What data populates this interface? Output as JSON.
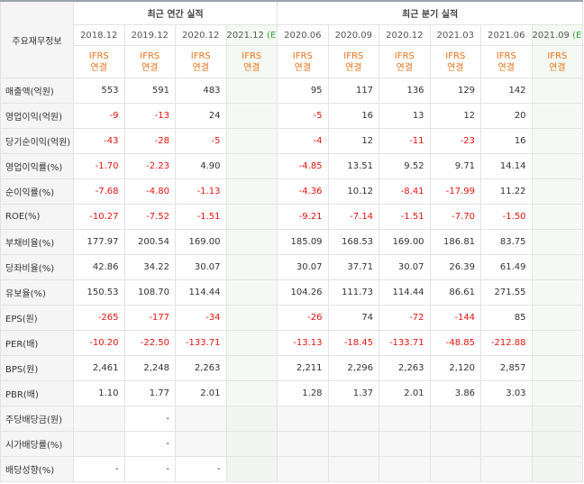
{
  "header": {
    "label": "주요재무정보",
    "annual_title": "최근 연간 실적",
    "quarterly_title": "최근 분기 실적",
    "annual_periods": [
      "2018.12",
      "2019.12",
      "2020.12",
      "2021.12"
    ],
    "annual_estimate_mark": "(E)",
    "quarterly_periods": [
      "2020.06",
      "2020.09",
      "2020.12",
      "2021.03",
      "2021.06",
      "2021.09"
    ],
    "quarterly_estimate_mark": "(E)",
    "basis_line1": "IFRS",
    "basis_line2": "연결"
  },
  "rows": [
    {
      "label": "매출액(억원)",
      "values": [
        "553",
        "591",
        "483",
        "",
        "95",
        "117",
        "136",
        "129",
        "142",
        ""
      ]
    },
    {
      "label": "영업이익(억원)",
      "values": [
        "-9",
        "-13",
        "24",
        "",
        "-5",
        "16",
        "13",
        "12",
        "20",
        ""
      ]
    },
    {
      "label": "당기순이익(억원)",
      "values": [
        "-43",
        "-28",
        "-5",
        "",
        "-4",
        "12",
        "-11",
        "-23",
        "16",
        ""
      ]
    },
    {
      "label": "영업이익률(%)",
      "values": [
        "-1.70",
        "-2.23",
        "4.90",
        "",
        "-4.85",
        "13.51",
        "9.52",
        "9.71",
        "14.14",
        ""
      ]
    },
    {
      "label": "순이익률(%)",
      "values": [
        "-7.68",
        "-4.80",
        "-1.13",
        "",
        "-4.36",
        "10.12",
        "-8.41",
        "-17.99",
        "11.22",
        ""
      ]
    },
    {
      "label": "ROE(%)",
      "values": [
        "-10.27",
        "-7.52",
        "-1.51",
        "",
        "-9.21",
        "-7.14",
        "-1.51",
        "-7.70",
        "-1.50",
        ""
      ]
    },
    {
      "label": "부채비율(%)",
      "values": [
        "177.97",
        "200.54",
        "169.00",
        "",
        "185.09",
        "168.53",
        "169.00",
        "186.81",
        "83.75",
        ""
      ]
    },
    {
      "label": "당좌비율(%)",
      "values": [
        "42.86",
        "34.22",
        "30.07",
        "",
        "30.07",
        "37.71",
        "30.07",
        "26.39",
        "61.49",
        ""
      ]
    },
    {
      "label": "유보율(%)",
      "values": [
        "150.53",
        "108.70",
        "114.44",
        "",
        "104.26",
        "111.73",
        "114.44",
        "86.61",
        "271.55",
        ""
      ]
    },
    {
      "label": "EPS(원)",
      "values": [
        "-265",
        "-177",
        "-34",
        "",
        "-26",
        "74",
        "-72",
        "-144",
        "85",
        ""
      ]
    },
    {
      "label": "PER(배)",
      "values": [
        "-10.20",
        "-22.50",
        "-133.71",
        "",
        "-13.13",
        "-18.45",
        "-133.71",
        "-48.85",
        "-212.88",
        ""
      ]
    },
    {
      "label": "BPS(원)",
      "values": [
        "2,461",
        "2,248",
        "2,263",
        "",
        "2,211",
        "2,296",
        "2,263",
        "2,120",
        "2,857",
        ""
      ]
    },
    {
      "label": "PBR(배)",
      "values": [
        "1.10",
        "1.77",
        "2.01",
        "",
        "1.28",
        "1.37",
        "2.01",
        "3.86",
        "3.03",
        ""
      ]
    },
    {
      "label": "주당배당금(원)",
      "values": [
        "",
        "-",
        "",
        "",
        "",
        "",
        "",
        "",
        "",
        ""
      ]
    },
    {
      "label": "시가배당률(%)",
      "values": [
        "",
        "-",
        "",
        "",
        "",
        "",
        "",
        "",
        "",
        ""
      ]
    },
    {
      "label": "배당성향(%)",
      "values": [
        "-",
        "-",
        "-",
        "",
        "",
        "",
        "",
        "",
        "",
        ""
      ]
    }
  ],
  "colors": {
    "negative": "#e3150e",
    "basis": "#e8721a",
    "estimate_mark": "#3c9a3c",
    "estimate_background": "#f4faf3"
  }
}
